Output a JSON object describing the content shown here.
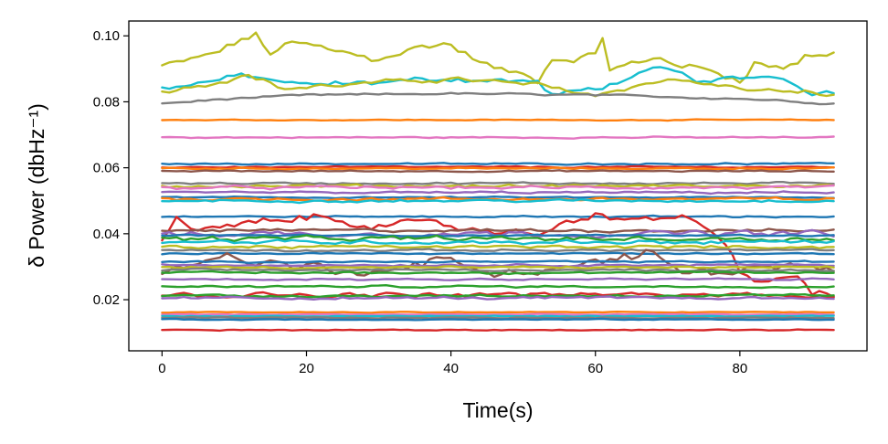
{
  "chart_data": {
    "type": "line",
    "title": "",
    "xlabel": "Time(s)",
    "ylabel": "δ Power (dbHz⁻¹)",
    "xlim": [
      -4.6,
      97.6
    ],
    "ylim": [
      0.0045,
      0.1045
    ],
    "xticks": [
      0,
      20,
      40,
      60,
      80
    ],
    "xtick_labels": [
      "0",
      "20",
      "40",
      "60",
      "80"
    ],
    "yticks": [
      0.02,
      0.04,
      0.06,
      0.08,
      0.1
    ],
    "ytick_labels": [
      "0.02",
      "0.04",
      "0.06",
      "0.08",
      "0.10"
    ],
    "x_range": [
      0,
      93
    ],
    "grid": false,
    "legend": false,
    "series": [
      {
        "color": "#bcbd22",
        "base": 0.0935,
        "noise": 0.0018,
        "jumps": [
          [
            1,
            0.091
          ],
          [
            8,
            0.095
          ],
          [
            11,
            0.099
          ],
          [
            13,
            0.1
          ],
          [
            15,
            0.094
          ],
          [
            17,
            0.098
          ],
          [
            20,
            0.097
          ],
          [
            29,
            0.093
          ],
          [
            39,
            0.098
          ],
          [
            46,
            0.09
          ],
          [
            52,
            0.087
          ],
          [
            54,
            0.093
          ],
          [
            60,
            0.094
          ],
          [
            61,
            0.1
          ],
          [
            62,
            0.09
          ],
          [
            69,
            0.093
          ],
          [
            80,
            0.087
          ],
          [
            82,
            0.092
          ],
          [
            86,
            0.09
          ],
          [
            89,
            0.094
          ],
          [
            93,
            0.095
          ]
        ]
      },
      {
        "color": "#17becf",
        "base": 0.0855,
        "noise": 0.0012,
        "jumps": [
          [
            0,
            0.084
          ],
          [
            9,
            0.087
          ],
          [
            11,
            0.088
          ],
          [
            20,
            0.085
          ],
          [
            40,
            0.087
          ],
          [
            52,
            0.086
          ],
          [
            54,
            0.082
          ],
          [
            60,
            0.084
          ],
          [
            69,
            0.09
          ],
          [
            75,
            0.086
          ],
          [
            85,
            0.088
          ],
          [
            90,
            0.083
          ],
          [
            93,
            0.083
          ]
        ]
      },
      {
        "color": "#bcbd22",
        "base": 0.0845,
        "noise": 0.001,
        "jumps": [
          [
            0,
            0.083
          ],
          [
            12,
            0.088
          ],
          [
            17,
            0.084
          ],
          [
            24,
            0.085
          ],
          [
            40,
            0.087
          ],
          [
            52,
            0.085
          ],
          [
            60,
            0.082
          ],
          [
            70,
            0.087
          ],
          [
            80,
            0.084
          ],
          [
            93,
            0.082
          ]
        ]
      },
      {
        "color": "#7f7f7f",
        "base": 0.0815,
        "noise": 0.0004,
        "jumps": [
          [
            0,
            0.0795
          ],
          [
            10,
            0.081
          ],
          [
            20,
            0.082
          ],
          [
            40,
            0.0825
          ],
          [
            60,
            0.082
          ],
          [
            80,
            0.081
          ],
          [
            93,
            0.0795
          ]
        ]
      },
      {
        "color": "#ff7f0e",
        "base": 0.0745,
        "noise": 0.0002,
        "jumps": []
      },
      {
        "color": "#e377c2",
        "base": 0.0692,
        "noise": 0.0003,
        "jumps": []
      },
      {
        "color": "#1f77b4",
        "base": 0.0612,
        "noise": 0.0003,
        "jumps": []
      },
      {
        "color": "#d62728",
        "base": 0.0602,
        "noise": 0.0003,
        "jumps": []
      },
      {
        "color": "#ff7f0e",
        "base": 0.0598,
        "noise": 0.0003,
        "jumps": []
      },
      {
        "color": "#8c564b",
        "base": 0.059,
        "noise": 0.0003,
        "jumps": []
      },
      {
        "color": "#7f7f7f",
        "base": 0.0553,
        "noise": 0.0004,
        "jumps": []
      },
      {
        "color": "#bcbd22",
        "base": 0.0545,
        "noise": 0.0006,
        "jumps": []
      },
      {
        "color": "#e377c2",
        "base": 0.054,
        "noise": 0.0006,
        "jumps": []
      },
      {
        "color": "#9467bd",
        "base": 0.0525,
        "noise": 0.0004,
        "jumps": []
      },
      {
        "color": "#1f77b4",
        "base": 0.051,
        "noise": 0.0003,
        "jumps": []
      },
      {
        "color": "#ff7f0e",
        "base": 0.0505,
        "noise": 0.0006,
        "jumps": []
      },
      {
        "color": "#17becf",
        "base": 0.05,
        "noise": 0.0005,
        "jumps": []
      },
      {
        "color": "#1f77b4",
        "base": 0.0452,
        "noise": 0.0003,
        "jumps": []
      },
      {
        "color": "#d62728",
        "base": 0.04,
        "noise": 0.0018,
        "jumps": [
          [
            0,
            0.037
          ],
          [
            2,
            0.044
          ],
          [
            4,
            0.041
          ],
          [
            10,
            0.042
          ],
          [
            16,
            0.044
          ],
          [
            22,
            0.045
          ],
          [
            30,
            0.043
          ],
          [
            40,
            0.042
          ],
          [
            52,
            0.04
          ],
          [
            60,
            0.047
          ],
          [
            64,
            0.043
          ],
          [
            72,
            0.046
          ],
          [
            76,
            0.04
          ],
          [
            78,
            0.036
          ],
          [
            80,
            0.028
          ],
          [
            84,
            0.025
          ],
          [
            88,
            0.028
          ],
          [
            90,
            0.022
          ],
          [
            93,
            0.02
          ]
        ]
      },
      {
        "color": "#8c564b",
        "base": 0.041,
        "noise": 0.0006,
        "jumps": []
      },
      {
        "color": "#9467bd",
        "base": 0.04,
        "noise": 0.0012,
        "jumps": []
      },
      {
        "color": "#1f77b4",
        "base": 0.0395,
        "noise": 0.0003,
        "jumps": []
      },
      {
        "color": "#2ca02c",
        "base": 0.0385,
        "noise": 0.001,
        "jumps": []
      },
      {
        "color": "#17becf",
        "base": 0.0375,
        "noise": 0.0008,
        "jumps": []
      },
      {
        "color": "#bcbd22",
        "base": 0.036,
        "noise": 0.0006,
        "jumps": []
      },
      {
        "color": "#7f7f7f",
        "base": 0.035,
        "noise": 0.0004,
        "jumps": []
      },
      {
        "color": "#1f77b4",
        "base": 0.034,
        "noise": 0.0003,
        "jumps": []
      },
      {
        "color": "#8c564b",
        "base": 0.031,
        "noise": 0.0022,
        "jumps": [
          [
            0,
            0.027
          ],
          [
            4,
            0.03
          ],
          [
            8,
            0.034
          ],
          [
            12,
            0.032
          ],
          [
            18,
            0.03
          ],
          [
            30,
            0.029
          ],
          [
            38,
            0.032
          ],
          [
            46,
            0.028
          ],
          [
            56,
            0.03
          ],
          [
            68,
            0.034
          ],
          [
            72,
            0.028
          ],
          [
            80,
            0.029
          ],
          [
            86,
            0.03
          ],
          [
            93,
            0.028
          ]
        ]
      },
      {
        "color": "#1f77b4",
        "base": 0.0315,
        "noise": 0.0003,
        "jumps": []
      },
      {
        "color": "#9467bd",
        "base": 0.0305,
        "noise": 0.0004,
        "jumps": []
      },
      {
        "color": "#bcbd22",
        "base": 0.0298,
        "noise": 0.0004,
        "jumps": []
      },
      {
        "color": "#7f7f7f",
        "base": 0.029,
        "noise": 0.0004,
        "jumps": []
      },
      {
        "color": "#2ca02c",
        "base": 0.0282,
        "noise": 0.0004,
        "jumps": []
      },
      {
        "color": "#9467bd",
        "base": 0.0262,
        "noise": 0.0004,
        "jumps": []
      },
      {
        "color": "#2ca02c",
        "base": 0.024,
        "noise": 0.0004,
        "jumps": []
      },
      {
        "color": "#d62728",
        "base": 0.0215,
        "noise": 0.001,
        "jumps": []
      },
      {
        "color": "#2ca02c",
        "base": 0.0212,
        "noise": 0.0005,
        "jumps": []
      },
      {
        "color": "#9467bd",
        "base": 0.0205,
        "noise": 0.0005,
        "jumps": []
      },
      {
        "color": "#ff7f0e",
        "base": 0.0162,
        "noise": 0.0002,
        "jumps": []
      },
      {
        "color": "#e377c2",
        "base": 0.0155,
        "noise": 0.0002,
        "jumps": []
      },
      {
        "color": "#17becf",
        "base": 0.015,
        "noise": 0.0002,
        "jumps": []
      },
      {
        "color": "#7f7f7f",
        "base": 0.0145,
        "noise": 0.0002,
        "jumps": []
      },
      {
        "color": "#1f77b4",
        "base": 0.014,
        "noise": 0.0002,
        "jumps": []
      },
      {
        "color": "#d62728",
        "base": 0.0108,
        "noise": 0.0002,
        "jumps": []
      }
    ]
  }
}
